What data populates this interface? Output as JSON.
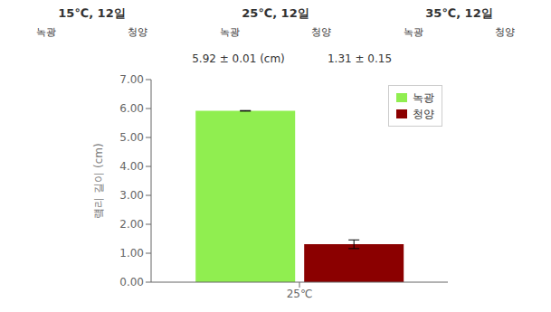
{
  "chart_data": {
    "type": "bar",
    "panels": [
      {
        "title": "15℃, 12일",
        "labels": [
          "녹광",
          "청양"
        ]
      },
      {
        "title": "25℃, 12일",
        "labels": [
          "녹광",
          "청양"
        ]
      },
      {
        "title": "35℃, 12일",
        "labels": [
          "녹광",
          "청양"
        ]
      }
    ],
    "annotations": [
      "5.92 ± 0.01 (cm)",
      "1.31 ± 0.15"
    ],
    "ylabel": "럨리 길이 (cm)",
    "categories": [
      "25℃"
    ],
    "series": [
      {
        "name": "녹광",
        "color": "#90EE50",
        "values": [
          5.92
        ],
        "errors": [
          0.01
        ]
      },
      {
        "name": "청양",
        "color": "#8B0000",
        "values": [
          1.31
        ],
        "errors": [
          0.15
        ]
      }
    ],
    "ylim": [
      0,
      7.0
    ],
    "yticks": [
      {
        "value": 0,
        "label": "0.00"
      },
      {
        "value": 1,
        "label": "1.00"
      },
      {
        "value": 2,
        "label": "2.00"
      },
      {
        "value": 3,
        "label": "3.00"
      },
      {
        "value": 4,
        "label": "4.00"
      },
      {
        "value": 5,
        "label": "5.00"
      },
      {
        "value": 6,
        "label": "6.00"
      },
      {
        "value": 7,
        "label": "7.00"
      }
    ],
    "grid": false,
    "legend": "upper right"
  }
}
